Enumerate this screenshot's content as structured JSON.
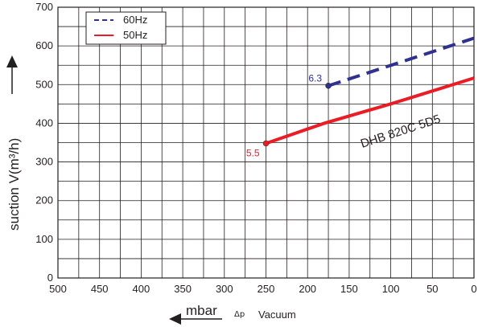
{
  "chart_data": {
    "type": "line",
    "xlim": [
      500,
      0
    ],
    "ylim": [
      0,
      700
    ],
    "x_major_ticks": [
      "500",
      "450",
      "400",
      "350",
      "300",
      "250",
      "200",
      "150",
      "100",
      "50",
      "0"
    ],
    "y_major_ticks": [
      "0",
      "100",
      "200",
      "300",
      "400",
      "500",
      "600",
      "700"
    ],
    "grid": true,
    "ylabel": "suction V(m³/h)",
    "xlabel_unit": "mbar",
    "xlabel_delta": "Δp",
    "xlabel_text": "Vacuum",
    "legend_position": "top-left",
    "model_label": "DHB 820C 5D5",
    "series": [
      {
        "name": "60Hz",
        "color": "#2e3192",
        "style": "dashed",
        "x": [
          175,
          0
        ],
        "y": [
          497,
          620
        ],
        "start_label": "6.3"
      },
      {
        "name": "50Hz",
        "color": "#ed1c24",
        "style": "solid",
        "x": [
          250,
          180,
          100,
          0
        ],
        "y": [
          348,
          400,
          450,
          517
        ],
        "start_label": "5.5"
      }
    ]
  }
}
